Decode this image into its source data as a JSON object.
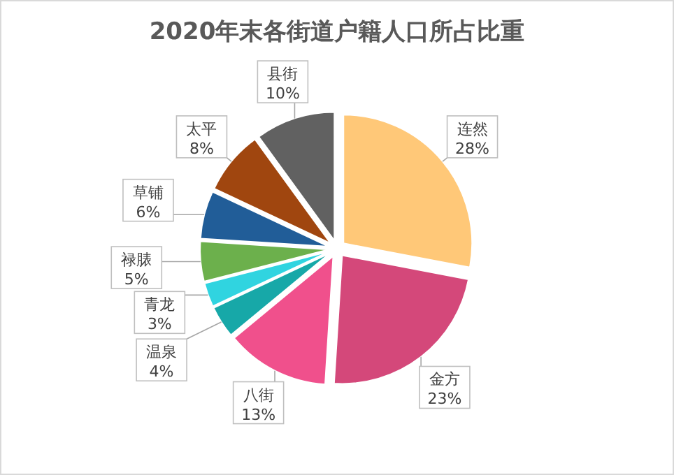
{
  "chart_data": {
    "type": "pie",
    "title": "2020年末各街道户籍人口所占比重",
    "categories": [
      "连然",
      "金方",
      "八街",
      "温泉",
      "青龙",
      "禄脿",
      "草铺",
      "太平",
      "县街"
    ],
    "values": [
      28,
      23,
      13,
      4,
      3,
      5,
      6,
      8,
      10
    ],
    "colors": [
      "#ffc878",
      "#d4487a",
      "#f0508c",
      "#17a8a8",
      "#30d4e0",
      "#6cb04c",
      "#215d98",
      "#a0460f",
      "#616161"
    ],
    "value_labels": [
      "28%",
      "23%",
      "13%",
      "4%",
      "3%",
      "5%",
      "6%",
      "8%",
      "10%"
    ]
  }
}
